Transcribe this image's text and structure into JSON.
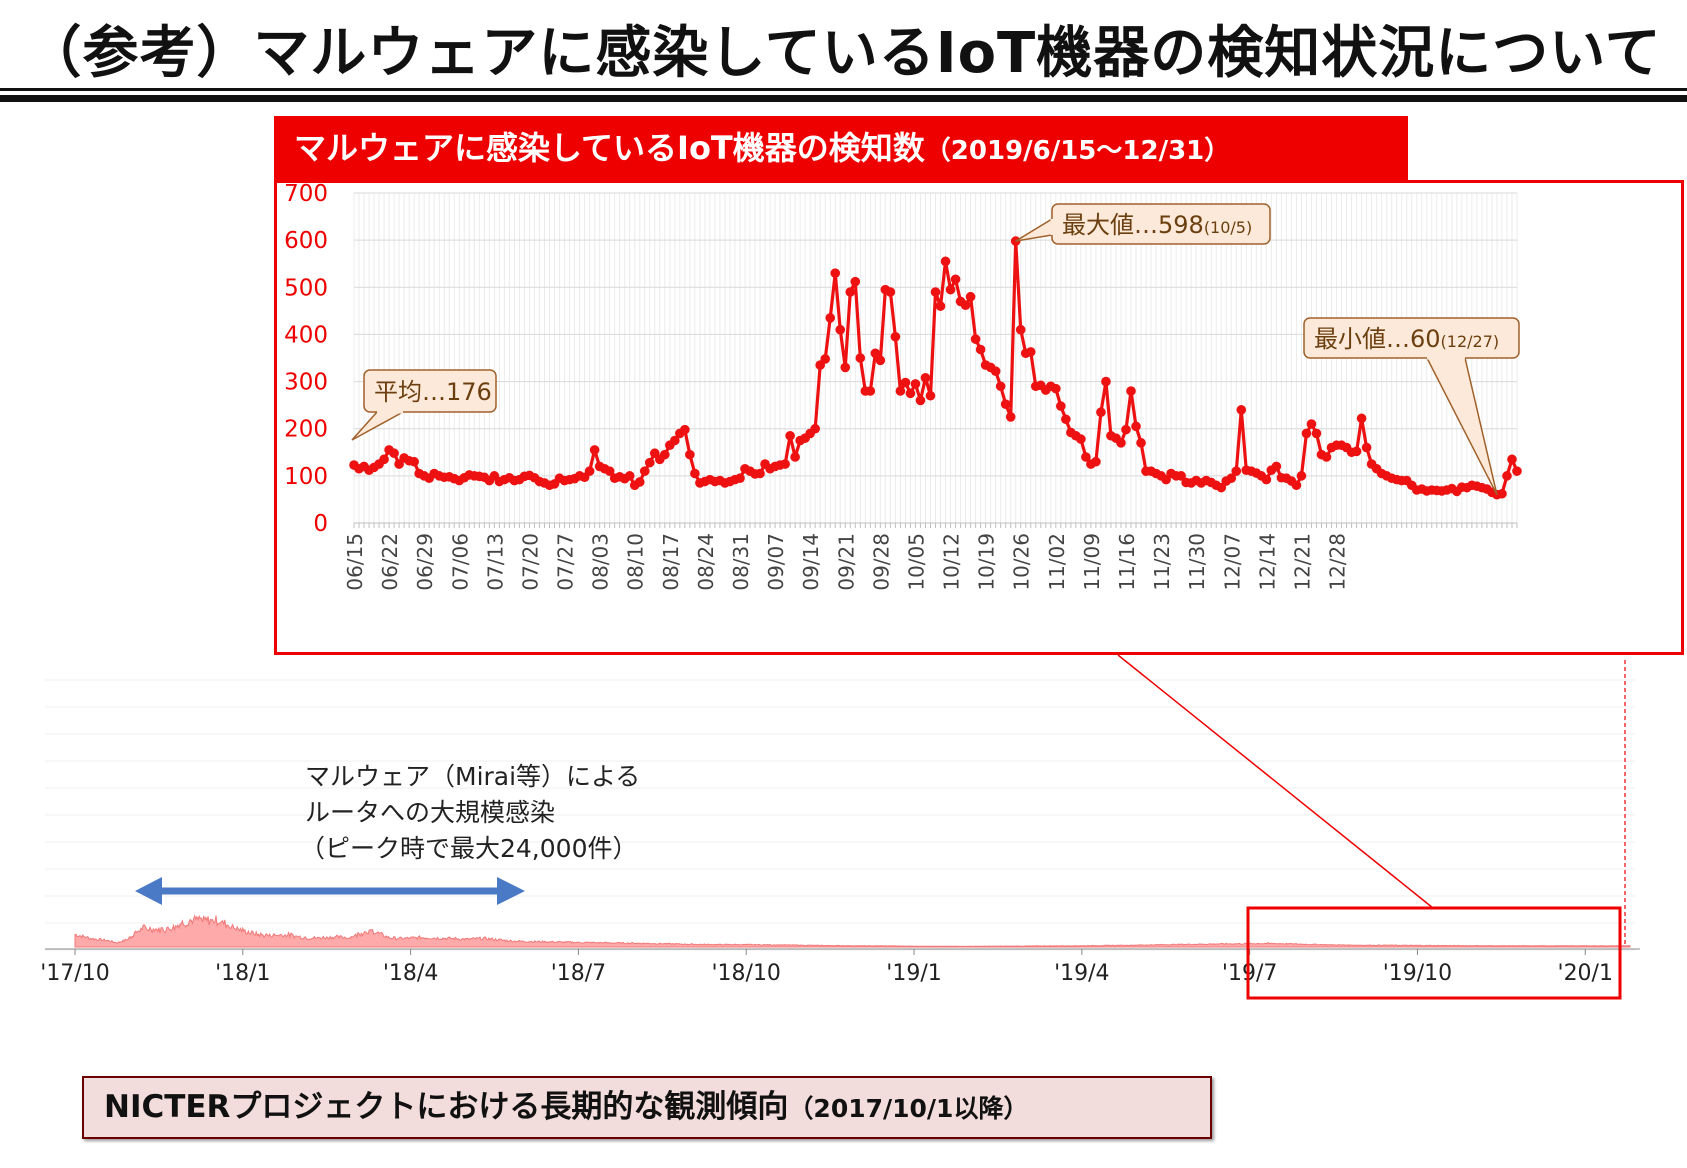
{
  "page_title": "（参考）マルウェアに感染しているIoT機器の検知状況について",
  "colors": {
    "accent": "#ee0000",
    "line": "#ee1111",
    "area": "#ffaaaa",
    "callout_fill": "#fde9d9",
    "callout_border": "#a0612a",
    "arrow": "#4a79c6"
  },
  "chart_data": [
    {
      "type": "line",
      "title": "マルウェアに感染しているIoT機器の検知数",
      "subtitle": "（2019/6/15～12/31）",
      "ylim": [
        0,
        700
      ],
      "yticks": [
        0,
        100,
        200,
        300,
        400,
        500,
        600,
        700
      ],
      "xticks": [
        "06/15",
        "06/22",
        "06/29",
        "07/06",
        "07/13",
        "07/20",
        "07/27",
        "08/03",
        "08/10",
        "08/17",
        "08/24",
        "08/31",
        "09/07",
        "09/14",
        "09/21",
        "09/28",
        "10/05",
        "10/12",
        "10/19",
        "10/26",
        "11/02",
        "11/09",
        "11/16",
        "11/23",
        "11/30",
        "12/07",
        "12/14",
        "12/21",
        "12/28"
      ],
      "grid": true,
      "start_date": "2019-06-15",
      "series": [
        {
          "values": [
            123,
            115,
            120,
            112,
            118,
            125,
            135,
            155,
            148,
            125,
            138,
            132,
            130,
            105,
            100,
            95,
            105,
            100,
            97,
            98,
            94,
            90,
            96,
            102,
            100,
            99,
            97,
            90,
            100,
            88,
            92,
            96,
            90,
            92,
            99,
            101,
            96,
            88,
            85,
            80,
            83,
            95,
            90,
            92,
            94,
            100,
            97,
            110,
            155,
            120,
            115,
            110,
            95,
            98,
            94,
            100,
            80,
            87,
            110,
            128,
            148,
            135,
            145,
            165,
            175,
            190,
            198,
            145,
            105,
            85,
            88,
            92,
            88,
            90,
            85,
            88,
            92,
            95,
            115,
            110,
            104,
            105,
            125,
            115,
            120,
            123,
            125,
            185,
            140,
            175,
            180,
            190,
            200,
            335,
            348,
            435,
            530,
            410,
            330,
            490,
            512,
            350,
            280,
            280,
            360,
            345,
            495,
            490,
            395,
            280,
            298,
            275,
            295,
            260,
            308,
            270,
            490,
            460,
            555,
            495,
            517,
            470,
            462,
            480,
            390,
            368,
            335,
            330,
            322,
            290,
            252,
            225,
            598,
            410,
            360,
            363,
            290,
            292,
            282,
            290,
            285,
            248,
            220,
            192,
            185,
            178,
            140,
            125,
            130,
            235,
            300,
            185,
            180,
            170,
            198,
            280,
            205,
            170,
            110,
            110,
            105,
            100,
            92,
            105,
            100,
            100,
            86,
            85,
            90,
            85,
            90,
            86,
            80,
            75,
            89,
            95,
            110,
            240,
            112,
            110,
            106,
            100,
            92,
            112,
            120,
            96,
            95,
            89,
            80,
            100,
            190,
            210,
            190,
            145,
            140,
            160,
            165,
            165,
            160,
            150,
            152,
            222,
            160,
            125,
            115,
            105,
            100,
            95,
            92,
            90,
            90,
            80,
            70,
            72,
            68,
            70,
            69,
            68,
            70,
            73,
            67,
            76,
            75,
            80,
            78,
            75,
            72,
            65,
            60,
            62,
            100,
            135,
            110
          ]
        }
      ],
      "annotations": [
        {
          "label": "平均…176",
          "value": 176
        },
        {
          "label": "最大値…598",
          "detail": "(10/5)",
          "value": 598
        },
        {
          "label": "最小値…60",
          "detail": "(12/27)",
          "value": 60
        }
      ]
    },
    {
      "type": "area",
      "title": "NICTERプロジェクトにおける長期的な観測傾向",
      "subtitle": "（2017/10/1以降）",
      "xticks": [
        "'17/10",
        "'18/1",
        "'18/4",
        "'18/7",
        "'18/10",
        "'19/1",
        "'19/4",
        "'19/7",
        "'19/10",
        "'20/1"
      ],
      "envelope": [
        [
          0,
          1050
        ],
        [
          0.3,
          700
        ],
        [
          0.6,
          520
        ],
        [
          0.75,
          350
        ],
        [
          0.92,
          600
        ],
        [
          1.2,
          1500
        ],
        [
          1.5,
          1700
        ],
        [
          2.0,
          2000
        ],
        [
          2.2,
          2300
        ],
        [
          2.5,
          2700
        ],
        [
          2.8,
          1700
        ],
        [
          3.0,
          1300
        ],
        [
          3.3,
          1200
        ],
        [
          3.7,
          1000
        ],
        [
          4.0,
          880
        ],
        [
          4.2,
          900
        ],
        [
          4.5,
          850
        ],
        [
          4.7,
          780
        ],
        [
          4.9,
          800
        ],
        [
          5.2,
          1600
        ],
        [
          5.4,
          1200
        ],
        [
          5.6,
          800
        ],
        [
          5.8,
          700
        ],
        [
          6.2,
          800
        ],
        [
          6.5,
          750
        ],
        [
          6.8,
          700
        ],
        [
          7.0,
          650
        ],
        [
          7.3,
          720
        ],
        [
          7.6,
          600
        ],
        [
          7.8,
          500
        ],
        [
          8.2,
          450
        ],
        [
          8.5,
          430
        ],
        [
          9.0,
          380
        ],
        [
          9.5,
          350
        ],
        [
          10.0,
          320
        ],
        [
          10.5,
          280
        ],
        [
          11.0,
          230
        ],
        [
          11.5,
          210
        ],
        [
          12.0,
          200
        ],
        [
          12.5,
          180
        ],
        [
          13.0,
          150
        ],
        [
          13.5,
          120
        ],
        [
          14.0,
          100
        ],
        [
          14.5,
          90
        ],
        [
          15.0,
          70
        ],
        [
          15.5,
          60
        ],
        [
          16.0,
          60
        ],
        [
          16.5,
          70
        ],
        [
          17.0,
          80
        ],
        [
          17.5,
          90
        ],
        [
          18.0,
          100
        ],
        [
          18.5,
          130
        ],
        [
          19.0,
          160
        ],
        [
          19.5,
          200
        ],
        [
          20.0,
          230
        ],
        [
          20.5,
          260
        ],
        [
          21.0,
          280
        ],
        [
          21.3,
          300
        ],
        [
          21.6,
          280
        ],
        [
          22.0,
          230
        ],
        [
          22.5,
          180
        ],
        [
          23.0,
          150
        ],
        [
          23.5,
          150
        ],
        [
          24.0,
          130
        ],
        [
          24.5,
          120
        ],
        [
          25.0,
          110
        ],
        [
          25.5,
          105
        ],
        [
          26.0,
          100
        ],
        [
          26.5,
          98
        ],
        [
          27.0,
          100
        ],
        [
          27.5,
          96
        ],
        [
          27.8,
          110
        ]
      ],
      "envelope_note": "",
      "peak": 24000,
      "annotation": {
        "lines": [
          "マルウェア（Mirai等）による",
          "ルータへの大規模感染",
          "（ピーク時で最大24,000件）"
        ]
      }
    }
  ],
  "bottom_label": {
    "main": "NICTERプロジェクトにおける長期的な観測傾向",
    "sub": "（2017/10/1以降）"
  }
}
